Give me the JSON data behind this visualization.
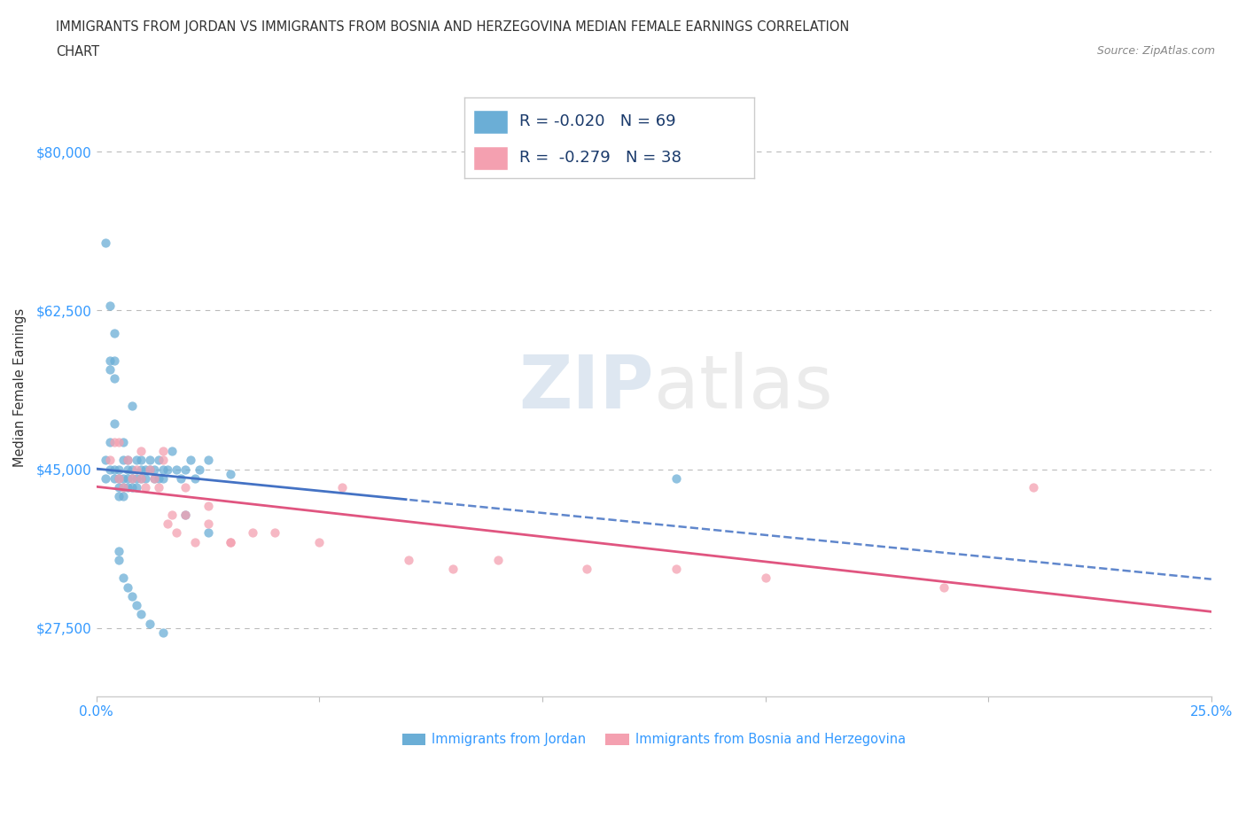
{
  "title_line1": "IMMIGRANTS FROM JORDAN VS IMMIGRANTS FROM BOSNIA AND HERZEGOVINA MEDIAN FEMALE EARNINGS CORRELATION",
  "title_line2": "CHART",
  "source": "Source: ZipAtlas.com",
  "ylabel": "Median Female Earnings",
  "xlim": [
    0,
    0.25
  ],
  "ylim": [
    20000,
    88000
  ],
  "yticks": [
    27500,
    45000,
    62500,
    80000
  ],
  "ytick_labels": [
    "$27,500",
    "$45,000",
    "$62,500",
    "$80,000"
  ],
  "xticks": [
    0.0,
    0.05,
    0.1,
    0.15,
    0.2,
    0.25
  ],
  "jordan_color": "#6baed6",
  "bosnia_color": "#f4a0b0",
  "jordan_line_color": "#4472c4",
  "bosnia_line_color": "#e05580",
  "jordan_R": -0.02,
  "jordan_N": 69,
  "bosnia_R": -0.279,
  "bosnia_N": 38,
  "watermark_zip": "ZIP",
  "watermark_atlas": "atlas",
  "legend_label_jordan": "Immigrants from Jordan",
  "legend_label_bosnia": "Immigrants from Bosnia and Herzegovina",
  "jordan_x": [
    0.002,
    0.002,
    0.003,
    0.003,
    0.003,
    0.004,
    0.004,
    0.004,
    0.004,
    0.005,
    0.005,
    0.005,
    0.005,
    0.006,
    0.006,
    0.006,
    0.006,
    0.007,
    0.007,
    0.007,
    0.007,
    0.008,
    0.008,
    0.008,
    0.009,
    0.009,
    0.009,
    0.01,
    0.01,
    0.01,
    0.011,
    0.011,
    0.012,
    0.012,
    0.013,
    0.013,
    0.014,
    0.014,
    0.015,
    0.015,
    0.016,
    0.017,
    0.018,
    0.019,
    0.02,
    0.021,
    0.022,
    0.023,
    0.025,
    0.03,
    0.002,
    0.003,
    0.004,
    0.005,
    0.006,
    0.007,
    0.008,
    0.009,
    0.01,
    0.012,
    0.015,
    0.02,
    0.025,
    0.003,
    0.004,
    0.005,
    0.006,
    0.008,
    0.13
  ],
  "jordan_y": [
    44000,
    46000,
    57000,
    48000,
    45000,
    55000,
    50000,
    45000,
    44000,
    45000,
    43000,
    44000,
    42000,
    46000,
    44000,
    43000,
    42000,
    45000,
    44000,
    43000,
    46000,
    45000,
    44000,
    43000,
    46000,
    44000,
    43000,
    45000,
    44000,
    46000,
    45000,
    44000,
    45000,
    46000,
    44000,
    45000,
    46000,
    44000,
    45000,
    44000,
    45000,
    47000,
    45000,
    44000,
    45000,
    46000,
    44000,
    45000,
    46000,
    44500,
    70000,
    63000,
    60000,
    35000,
    33000,
    32000,
    31000,
    30000,
    29000,
    28000,
    27000,
    40000,
    38000,
    56000,
    57000,
    36000,
    48000,
    52000,
    44000
  ],
  "bosnia_x": [
    0.003,
    0.004,
    0.005,
    0.006,
    0.007,
    0.008,
    0.009,
    0.01,
    0.011,
    0.012,
    0.013,
    0.014,
    0.015,
    0.016,
    0.017,
    0.018,
    0.02,
    0.022,
    0.025,
    0.03,
    0.035,
    0.04,
    0.05,
    0.055,
    0.07,
    0.08,
    0.09,
    0.11,
    0.13,
    0.15,
    0.19,
    0.005,
    0.01,
    0.015,
    0.02,
    0.025,
    0.03,
    0.21
  ],
  "bosnia_y": [
    46000,
    48000,
    44000,
    43000,
    46000,
    44000,
    45000,
    44000,
    43000,
    45000,
    44000,
    43000,
    46000,
    39000,
    40000,
    38000,
    43000,
    37000,
    41000,
    37000,
    38000,
    38000,
    37000,
    43000,
    35000,
    34000,
    35000,
    34000,
    34000,
    33000,
    32000,
    48000,
    47000,
    47000,
    40000,
    39000,
    37000,
    43000
  ]
}
